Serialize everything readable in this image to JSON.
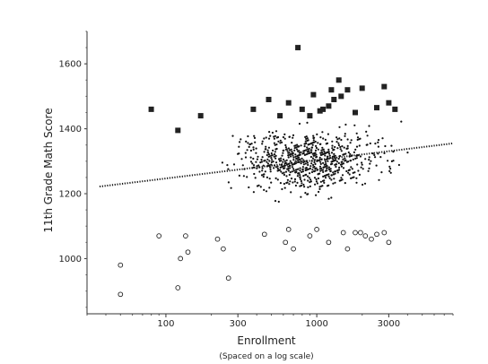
{
  "chart_data": {
    "type": "scatter",
    "xlabel": "Enrollment",
    "xlabel_note": "(Spaced on a log scale)",
    "ylabel": "11th Grade Math Score",
    "x_scale": "log",
    "xlim": [
      30,
      8000
    ],
    "ylim": [
      830,
      1700
    ],
    "x_ticks": [
      100,
      300,
      1000,
      3000
    ],
    "x_tick_labels": [
      "100",
      "300",
      "1000",
      "3000"
    ],
    "y_ticks": [
      1000,
      1200,
      1400,
      1600
    ],
    "y_tick_labels": [
      "1000",
      "1200",
      "1400",
      "1600"
    ],
    "grid": false,
    "trend_line": {
      "style": "dotted",
      "points": [
        [
          30,
          1222
        ],
        [
          8000,
          1355
        ]
      ]
    },
    "series": [
      {
        "marker": "filled-square",
        "points": [
          [
            80,
            1460
          ],
          [
            120,
            1395
          ],
          [
            170,
            1440
          ],
          [
            380,
            1460
          ],
          [
            480,
            1490
          ],
          [
            570,
            1440
          ],
          [
            650,
            1480
          ],
          [
            750,
            1650
          ],
          [
            800,
            1460
          ],
          [
            900,
            1440
          ],
          [
            950,
            1505
          ],
          [
            1050,
            1455
          ],
          [
            1100,
            1460
          ],
          [
            1200,
            1470
          ],
          [
            1250,
            1520
          ],
          [
            1300,
            1490
          ],
          [
            1400,
            1550
          ],
          [
            1450,
            1500
          ],
          [
            1600,
            1520
          ],
          [
            1800,
            1450
          ],
          [
            2000,
            1525
          ],
          [
            2500,
            1465
          ],
          [
            2800,
            1530
          ],
          [
            3000,
            1480
          ],
          [
            3300,
            1460
          ]
        ]
      },
      {
        "marker": "open-circle",
        "points": [
          [
            50,
            980
          ],
          [
            50,
            890
          ],
          [
            90,
            1070
          ],
          [
            120,
            910
          ],
          [
            125,
            1000
          ],
          [
            135,
            1070
          ],
          [
            140,
            1020
          ],
          [
            220,
            1060
          ],
          [
            240,
            1030
          ],
          [
            260,
            940
          ],
          [
            450,
            1075
          ],
          [
            620,
            1050
          ],
          [
            650,
            1090
          ],
          [
            700,
            1030
          ],
          [
            900,
            1070
          ],
          [
            1000,
            1090
          ],
          [
            1200,
            1050
          ],
          [
            1500,
            1080
          ],
          [
            1600,
            1030
          ],
          [
            1800,
            1080
          ],
          [
            1950,
            1080
          ],
          [
            2100,
            1070
          ],
          [
            2300,
            1060
          ],
          [
            2500,
            1075
          ],
          [
            2800,
            1080
          ],
          [
            3000,
            1050
          ]
        ]
      },
      {
        "marker": "small-dot",
        "generated_in_script": true
      }
    ]
  }
}
